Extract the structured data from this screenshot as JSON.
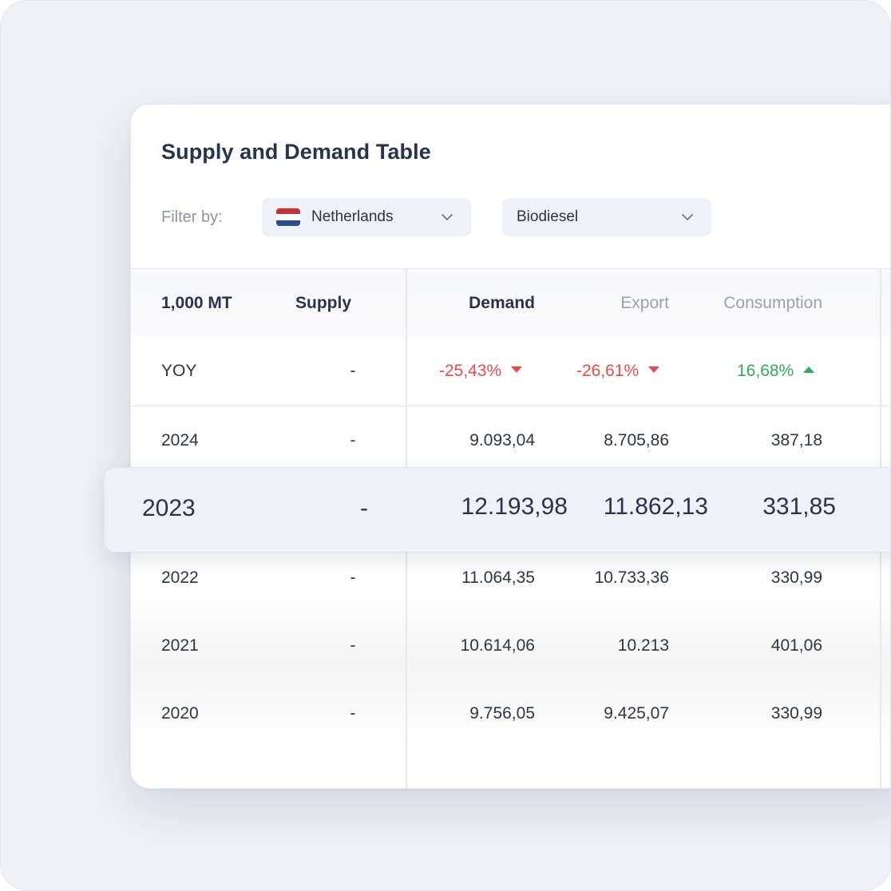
{
  "title": "Supply and Demand Table",
  "filter": {
    "label": "Filter by:",
    "country": "Netherlands",
    "product": "Biodiesel"
  },
  "colors": {
    "flag_red": "#c8333a",
    "flag_white": "#ffffff",
    "flag_blue": "#2b4b8c",
    "negative": "#e8494a",
    "positive": "#2fae56"
  },
  "table": {
    "headers": {
      "unit": "1,000 MT",
      "supply": "Supply",
      "demand": "Demand",
      "export": "Export",
      "consumption": "Consumption"
    },
    "yoy": {
      "label": "YOY",
      "supply": "-",
      "demand": "-25,43%",
      "export": "-26,61%",
      "consumption": "16,68%"
    },
    "rows": [
      {
        "year": "2024",
        "supply": "-",
        "demand": "9.093,04",
        "export": "8.705,86",
        "consumption": "387,18"
      },
      {
        "year": "2023",
        "supply": "-",
        "demand": "12.193,98",
        "export": "11.862,13",
        "consumption": "331,85"
      },
      {
        "year": "2022",
        "supply": "-",
        "demand": "11.064,35",
        "export": "10.733,36",
        "consumption": "330,99"
      },
      {
        "year": "2021",
        "supply": "-",
        "demand": "10.614,06",
        "export": "10.213",
        "consumption": "401,06"
      },
      {
        "year": "2020",
        "supply": "-",
        "demand": "9.756,05",
        "export": "9.425,07",
        "consumption": "330,99"
      }
    ]
  }
}
